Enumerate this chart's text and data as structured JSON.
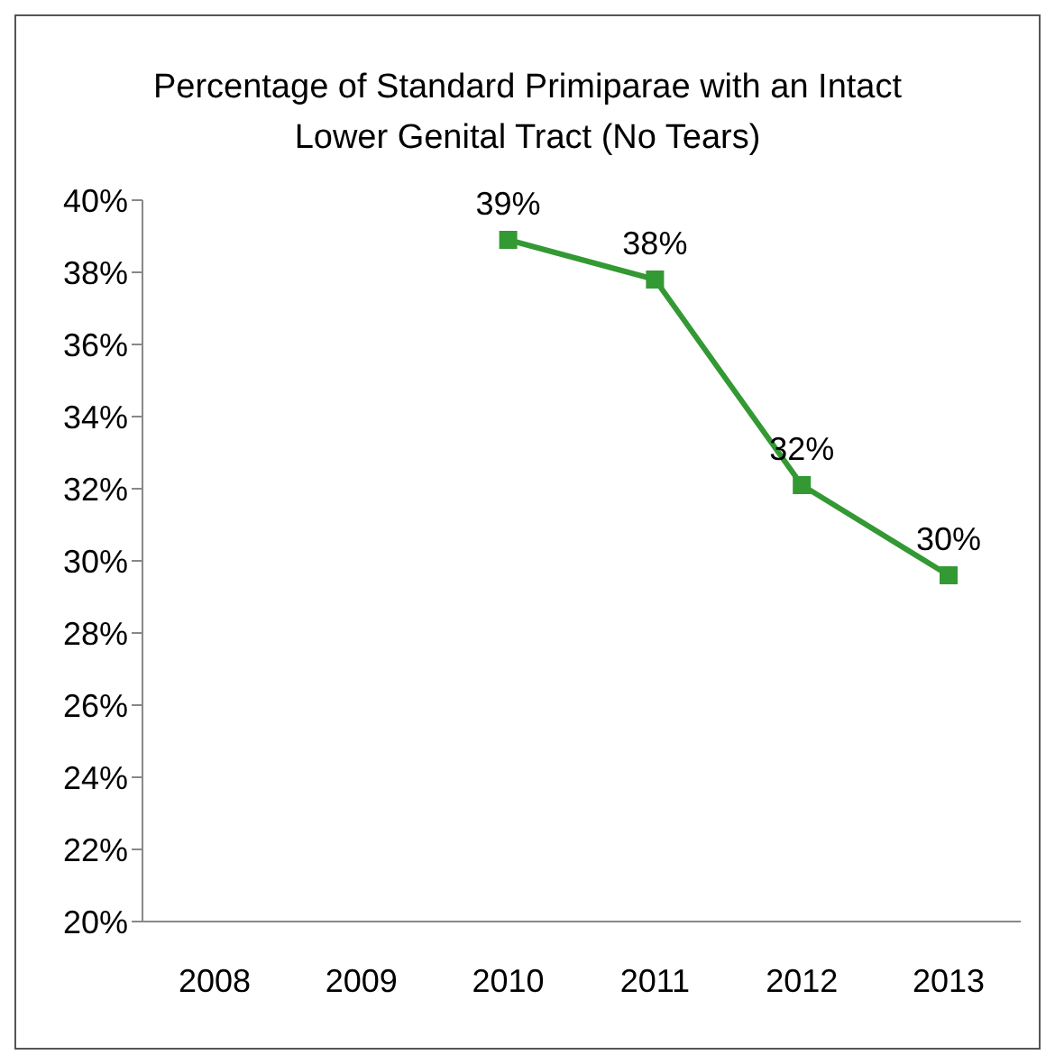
{
  "chart_data": {
    "type": "line",
    "title": "Percentage of Standard Primiparae with an Intact Lower Genital Tract (No Tears)",
    "categories": [
      "2008",
      "2009",
      "2010",
      "2011",
      "2012",
      "2013"
    ],
    "series": [
      {
        "color": "#339933",
        "values": [
          null,
          null,
          38.9,
          37.8,
          32.1,
          29.6
        ],
        "value_labels": [
          null,
          null,
          "39%",
          "38%",
          "32%",
          "30%"
        ]
      }
    ],
    "ylim": [
      20,
      40
    ],
    "yticks": [
      {
        "value": 20,
        "label": "20%"
      },
      {
        "value": 22,
        "label": "22%"
      },
      {
        "value": 24,
        "label": "24%"
      },
      {
        "value": 26,
        "label": "26%"
      },
      {
        "value": 28,
        "label": "28%"
      },
      {
        "value": 30,
        "label": "30%"
      },
      {
        "value": 32,
        "label": "32%"
      },
      {
        "value": 34,
        "label": "34%"
      },
      {
        "value": 36,
        "label": "36%"
      },
      {
        "value": 38,
        "label": "38%"
      },
      {
        "value": 40,
        "label": "40%"
      }
    ],
    "grid": false,
    "legend": false,
    "marker": "square",
    "line_style": "solid"
  }
}
